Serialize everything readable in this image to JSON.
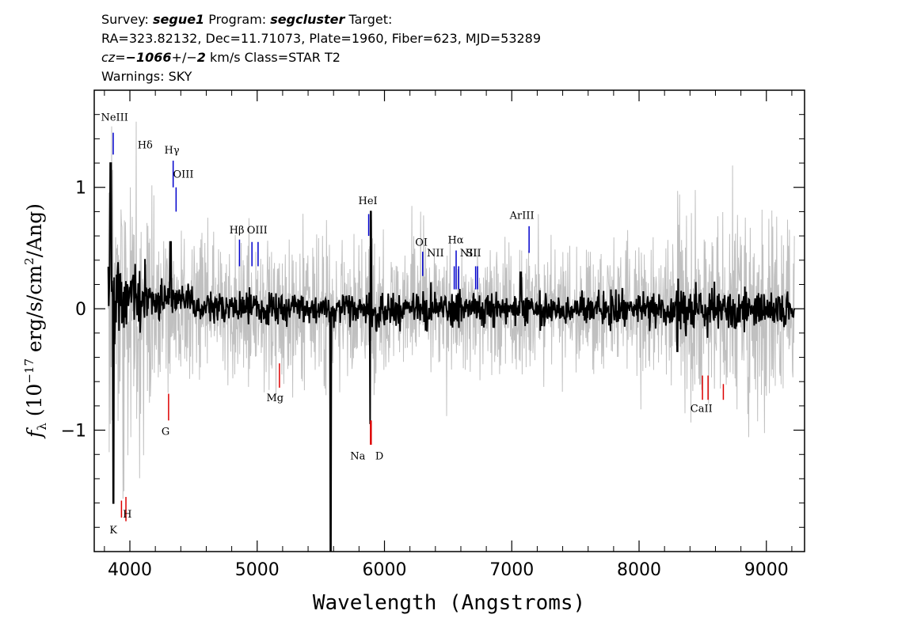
{
  "header": {
    "line1": {
      "survey_label": "Survey:",
      "survey_value": "segue1",
      "program_label": "Program:",
      "program_value": "segcluster",
      "target_label": "Target:"
    },
    "line2": "RA=323.82132, Dec=11.71073, Plate=1960, Fiber=623, MJD=53289",
    "line3": {
      "cz_label": "cz=",
      "cz_value": "−1066",
      "pm": "+/−",
      "cz_err": "2",
      "rest": " km/s Class=STAR T2"
    },
    "line4": "Warnings: SKY"
  },
  "chart_data": {
    "type": "line",
    "xlabel": "Wavelength (Angstroms)",
    "ylabel_prefix": "f",
    "ylabel_sub": "λ",
    "ylabel_rest": " (10",
    "ylabel_exp": "−17",
    "ylabel_units": " erg/s/cm",
    "ylabel_sq": "2",
    "ylabel_end": "/Ang)",
    "xlim": [
      3720,
      9300
    ],
    "ylim": [
      -2.0,
      1.8
    ],
    "xticks": [
      4000,
      5000,
      6000,
      7000,
      8000,
      9000
    ],
    "xtick_labels": [
      "4000",
      "5000",
      "6000",
      "7000",
      "8000",
      "9000"
    ],
    "yticks": [
      -1,
      0,
      1
    ],
    "ytick_labels": [
      "−1",
      "0",
      "1"
    ],
    "colors": {
      "flux": "#000000",
      "error": "#c0c0c0",
      "emission": "#0000cc",
      "absorption": "#dd0000"
    },
    "series": [
      {
        "role": "flux",
        "wavelength_range": [
          3830,
          9220
        ],
        "features": [
          {
            "x": 3850,
            "y": 1.2
          },
          {
            "x": 3870,
            "y": -1.6
          },
          {
            "x": 4320,
            "y": 0.55
          },
          {
            "x": 5577,
            "y": -2.0
          },
          {
            "x": 5890,
            "y": -0.95
          },
          {
            "x": 5894,
            "y": 0.8
          },
          {
            "x": 7070,
            "y": 0.3
          },
          {
            "x": 8300,
            "y": -0.35
          }
        ]
      },
      {
        "role": "error",
        "typical_amplitude": 0.35
      }
    ],
    "emission_lines": [
      {
        "label": "NeIII",
        "x": 3869,
        "y1": 1.45,
        "y2": 1.27,
        "lx": 3880,
        "ly": 1.55
      },
      {
        "label": "Hδ",
        "x": 4102,
        "y1": 1.33,
        "y2": 1.33,
        "lx": 4120,
        "ly": 1.32
      },
      {
        "label": "Hγ",
        "x": 4340,
        "y1": 1.22,
        "y2": 1.0,
        "lx": 4330,
        "ly": 1.28
      },
      {
        "label": "OIII",
        "x": 4363,
        "y1": 1.0,
        "y2": 0.8,
        "lx": 4420,
        "ly": 1.08
      },
      {
        "label": "Hβ",
        "x": 4861,
        "y1": 0.57,
        "y2": 0.35,
        "lx": 4840,
        "ly": 0.62
      },
      {
        "label": "OIII",
        "x": 4959,
        "y1": 0.55,
        "y2": 0.35,
        "lx": 5000,
        "ly": 0.62
      },
      {
        "label": "",
        "x": 5007,
        "y1": 0.55,
        "y2": 0.35,
        "lx": 5007,
        "ly": 0.62
      },
      {
        "label": "HeI",
        "x": 5876,
        "y1": 0.78,
        "y2": 0.6,
        "lx": 5870,
        "ly": 0.86
      },
      {
        "label": "OI",
        "x": 6300,
        "y1": 0.47,
        "y2": 0.27,
        "lx": 6290,
        "ly": 0.52
      },
      {
        "label": "NII",
        "x": 6548,
        "y1": 0.35,
        "y2": 0.16,
        "lx": 6400,
        "ly": 0.43
      },
      {
        "label": "Hα",
        "x": 6563,
        "y1": 0.48,
        "y2": 0.16,
        "lx": 6560,
        "ly": 0.54
      },
      {
        "label": "NII",
        "x": 6583,
        "y1": 0.35,
        "y2": 0.16,
        "lx": 6660,
        "ly": 0.43
      },
      {
        "label": "SII",
        "x": 6716,
        "y1": 0.35,
        "y2": 0.16,
        "lx": 6700,
        "ly": 0.43
      },
      {
        "label": "",
        "x": 6731,
        "y1": 0.35,
        "y2": 0.16,
        "lx": 6731,
        "ly": 0.43
      },
      {
        "label": "ArIII",
        "x": 7136,
        "y1": 0.68,
        "y2": 0.46,
        "lx": 7080,
        "ly": 0.74
      }
    ],
    "absorption_lines": [
      {
        "label": "K",
        "x": 3934,
        "y1": -1.58,
        "y2": -1.72,
        "lx": 3870,
        "ly": -1.85
      },
      {
        "label": "H",
        "x": 3969,
        "y1": -1.55,
        "y2": -1.75,
        "lx": 3980,
        "ly": -1.72
      },
      {
        "label": "G",
        "x": 4304,
        "y1": -0.7,
        "y2": -0.92,
        "lx": 4280,
        "ly": -1.04
      },
      {
        "label": "Mg",
        "x": 5175,
        "y1": -0.45,
        "y2": -0.65,
        "lx": 5140,
        "ly": -0.76
      },
      {
        "label": "Na",
        "x": 5890,
        "y1": -0.92,
        "y2": -1.12,
        "lx": 5790,
        "ly": -1.24
      },
      {
        "label": "D",
        "x": 5896,
        "y1": -0.92,
        "y2": -1.12,
        "lx": 5960,
        "ly": -1.24
      },
      {
        "label": "CaII",
        "x": 8498,
        "y1": -0.55,
        "y2": -0.75,
        "lx": 8490,
        "ly": -0.85
      },
      {
        "label": "",
        "x": 8542,
        "y1": -0.55,
        "y2": -0.75,
        "lx": 8542,
        "ly": -0.85
      },
      {
        "label": "",
        "x": 8662,
        "y1": -0.62,
        "y2": -0.75,
        "lx": 8662,
        "ly": -0.85
      }
    ]
  }
}
